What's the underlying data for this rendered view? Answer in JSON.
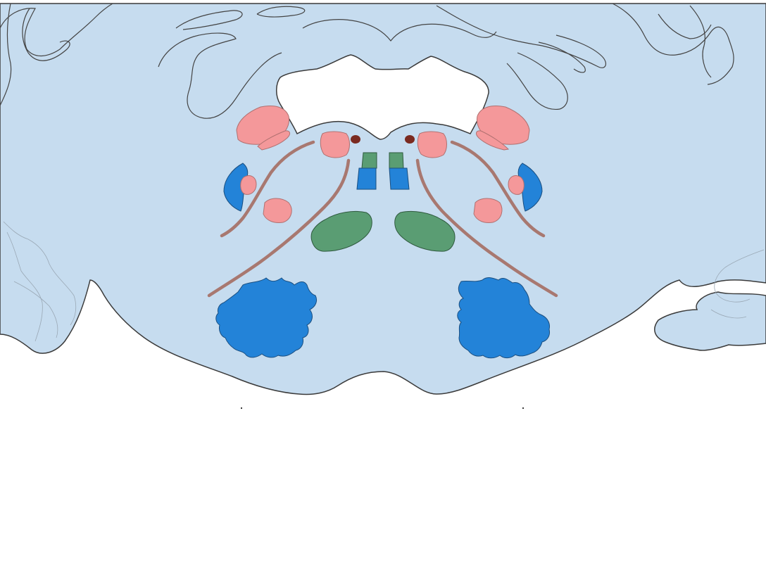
{
  "colors": {
    "background": "#ffffff",
    "tissue": "#c6dcef",
    "outline": "#3a3a3a",
    "gyri_line": "#444444",
    "faint_line": "#9aa8b5",
    "pink_nucleus": "#f4989a",
    "pink_stroke": "#b07070",
    "blue_nucleus": "#2383d8",
    "blue_stroke": "#1b4f80",
    "green_nucleus": "#5a9d73",
    "green_stroke": "#2f5a3e",
    "tract": "#a87870",
    "dot": "#7a2a20"
  },
  "regions": [
    {
      "id": "ventricle",
      "shape": "cavity",
      "color_key": "background"
    },
    {
      "id": "pink-upper-left",
      "color_key": "pink_nucleus"
    },
    {
      "id": "pink-upper-right",
      "color_key": "pink_nucleus"
    },
    {
      "id": "pink-medial-left",
      "color_key": "pink_nucleus"
    },
    {
      "id": "pink-medial-right",
      "color_key": "pink_nucleus"
    },
    {
      "id": "pink-lateral-left",
      "color_key": "pink_nucleus"
    },
    {
      "id": "pink-lateral-right",
      "color_key": "pink_nucleus"
    },
    {
      "id": "blue-lateral-left",
      "color_key": "blue_nucleus"
    },
    {
      "id": "blue-lateral-right",
      "color_key": "blue_nucleus"
    },
    {
      "id": "blue-midline-pair",
      "color_key": "blue_nucleus"
    },
    {
      "id": "green-midline-pair",
      "color_key": "green_nucleus"
    },
    {
      "id": "green-large-pair",
      "color_key": "green_nucleus"
    },
    {
      "id": "blue-irregular-pair",
      "color_key": "blue_nucleus"
    },
    {
      "id": "tract-lines",
      "color_key": "tract"
    }
  ]
}
